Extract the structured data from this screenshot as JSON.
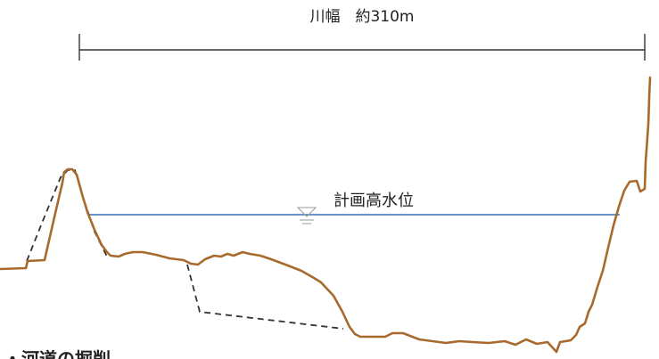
{
  "width_label": "川幅　約310m",
  "water_level_label": "計画高水位",
  "caption": "・河道の掘削",
  "colors": {
    "ground": "#a86a2c",
    "water_line": "#3a6fb5",
    "dimension_line": "#333333",
    "excavation_line": "#222222",
    "text": "#222222"
  }
}
